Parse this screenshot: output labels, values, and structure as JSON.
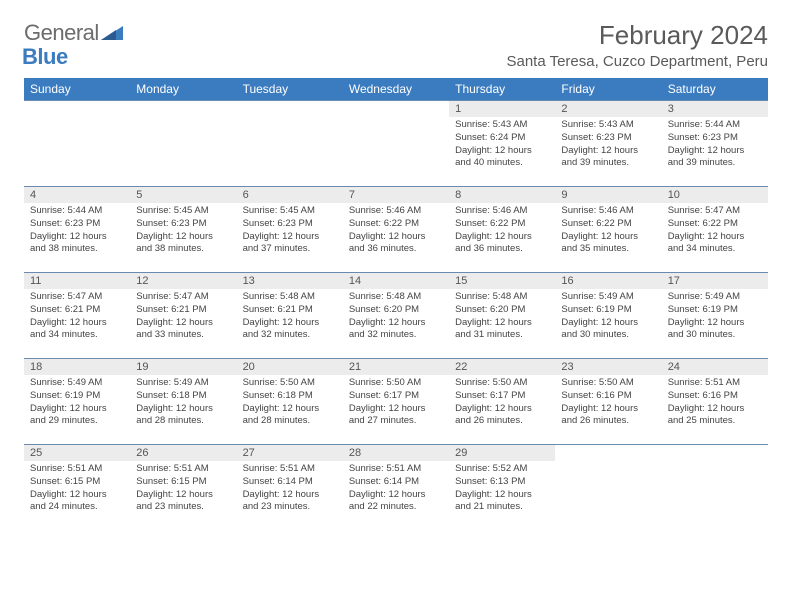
{
  "logo": {
    "text1": "General",
    "text2": "Blue"
  },
  "title": "February 2024",
  "location": "Santa Teresa, Cuzco Department, Peru",
  "colors": {
    "header_bg": "#3b7bbf",
    "daynum_bg": "#ececec",
    "rule": "#6b8ab0",
    "text": "#444444",
    "title_text": "#5a5a5a"
  },
  "weekdays": [
    "Sunday",
    "Monday",
    "Tuesday",
    "Wednesday",
    "Thursday",
    "Friday",
    "Saturday"
  ],
  "weeks": [
    [
      null,
      null,
      null,
      null,
      {
        "n": "1",
        "sr": "5:43 AM",
        "ss": "6:24 PM",
        "dl": "12 hours and 40 minutes."
      },
      {
        "n": "2",
        "sr": "5:43 AM",
        "ss": "6:23 PM",
        "dl": "12 hours and 39 minutes."
      },
      {
        "n": "3",
        "sr": "5:44 AM",
        "ss": "6:23 PM",
        "dl": "12 hours and 39 minutes."
      }
    ],
    [
      {
        "n": "4",
        "sr": "5:44 AM",
        "ss": "6:23 PM",
        "dl": "12 hours and 38 minutes."
      },
      {
        "n": "5",
        "sr": "5:45 AM",
        "ss": "6:23 PM",
        "dl": "12 hours and 38 minutes."
      },
      {
        "n": "6",
        "sr": "5:45 AM",
        "ss": "6:23 PM",
        "dl": "12 hours and 37 minutes."
      },
      {
        "n": "7",
        "sr": "5:46 AM",
        "ss": "6:22 PM",
        "dl": "12 hours and 36 minutes."
      },
      {
        "n": "8",
        "sr": "5:46 AM",
        "ss": "6:22 PM",
        "dl": "12 hours and 36 minutes."
      },
      {
        "n": "9",
        "sr": "5:46 AM",
        "ss": "6:22 PM",
        "dl": "12 hours and 35 minutes."
      },
      {
        "n": "10",
        "sr": "5:47 AM",
        "ss": "6:22 PM",
        "dl": "12 hours and 34 minutes."
      }
    ],
    [
      {
        "n": "11",
        "sr": "5:47 AM",
        "ss": "6:21 PM",
        "dl": "12 hours and 34 minutes."
      },
      {
        "n": "12",
        "sr": "5:47 AM",
        "ss": "6:21 PM",
        "dl": "12 hours and 33 minutes."
      },
      {
        "n": "13",
        "sr": "5:48 AM",
        "ss": "6:21 PM",
        "dl": "12 hours and 32 minutes."
      },
      {
        "n": "14",
        "sr": "5:48 AM",
        "ss": "6:20 PM",
        "dl": "12 hours and 32 minutes."
      },
      {
        "n": "15",
        "sr": "5:48 AM",
        "ss": "6:20 PM",
        "dl": "12 hours and 31 minutes."
      },
      {
        "n": "16",
        "sr": "5:49 AM",
        "ss": "6:19 PM",
        "dl": "12 hours and 30 minutes."
      },
      {
        "n": "17",
        "sr": "5:49 AM",
        "ss": "6:19 PM",
        "dl": "12 hours and 30 minutes."
      }
    ],
    [
      {
        "n": "18",
        "sr": "5:49 AM",
        "ss": "6:19 PM",
        "dl": "12 hours and 29 minutes."
      },
      {
        "n": "19",
        "sr": "5:49 AM",
        "ss": "6:18 PM",
        "dl": "12 hours and 28 minutes."
      },
      {
        "n": "20",
        "sr": "5:50 AM",
        "ss": "6:18 PM",
        "dl": "12 hours and 28 minutes."
      },
      {
        "n": "21",
        "sr": "5:50 AM",
        "ss": "6:17 PM",
        "dl": "12 hours and 27 minutes."
      },
      {
        "n": "22",
        "sr": "5:50 AM",
        "ss": "6:17 PM",
        "dl": "12 hours and 26 minutes."
      },
      {
        "n": "23",
        "sr": "5:50 AM",
        "ss": "6:16 PM",
        "dl": "12 hours and 26 minutes."
      },
      {
        "n": "24",
        "sr": "5:51 AM",
        "ss": "6:16 PM",
        "dl": "12 hours and 25 minutes."
      }
    ],
    [
      {
        "n": "25",
        "sr": "5:51 AM",
        "ss": "6:15 PM",
        "dl": "12 hours and 24 minutes."
      },
      {
        "n": "26",
        "sr": "5:51 AM",
        "ss": "6:15 PM",
        "dl": "12 hours and 23 minutes."
      },
      {
        "n": "27",
        "sr": "5:51 AM",
        "ss": "6:14 PM",
        "dl": "12 hours and 23 minutes."
      },
      {
        "n": "28",
        "sr": "5:51 AM",
        "ss": "6:14 PM",
        "dl": "12 hours and 22 minutes."
      },
      {
        "n": "29",
        "sr": "5:52 AM",
        "ss": "6:13 PM",
        "dl": "12 hours and 21 minutes."
      },
      null,
      null
    ]
  ],
  "labels": {
    "sunrise": "Sunrise:",
    "sunset": "Sunset:",
    "daylight": "Daylight:"
  }
}
